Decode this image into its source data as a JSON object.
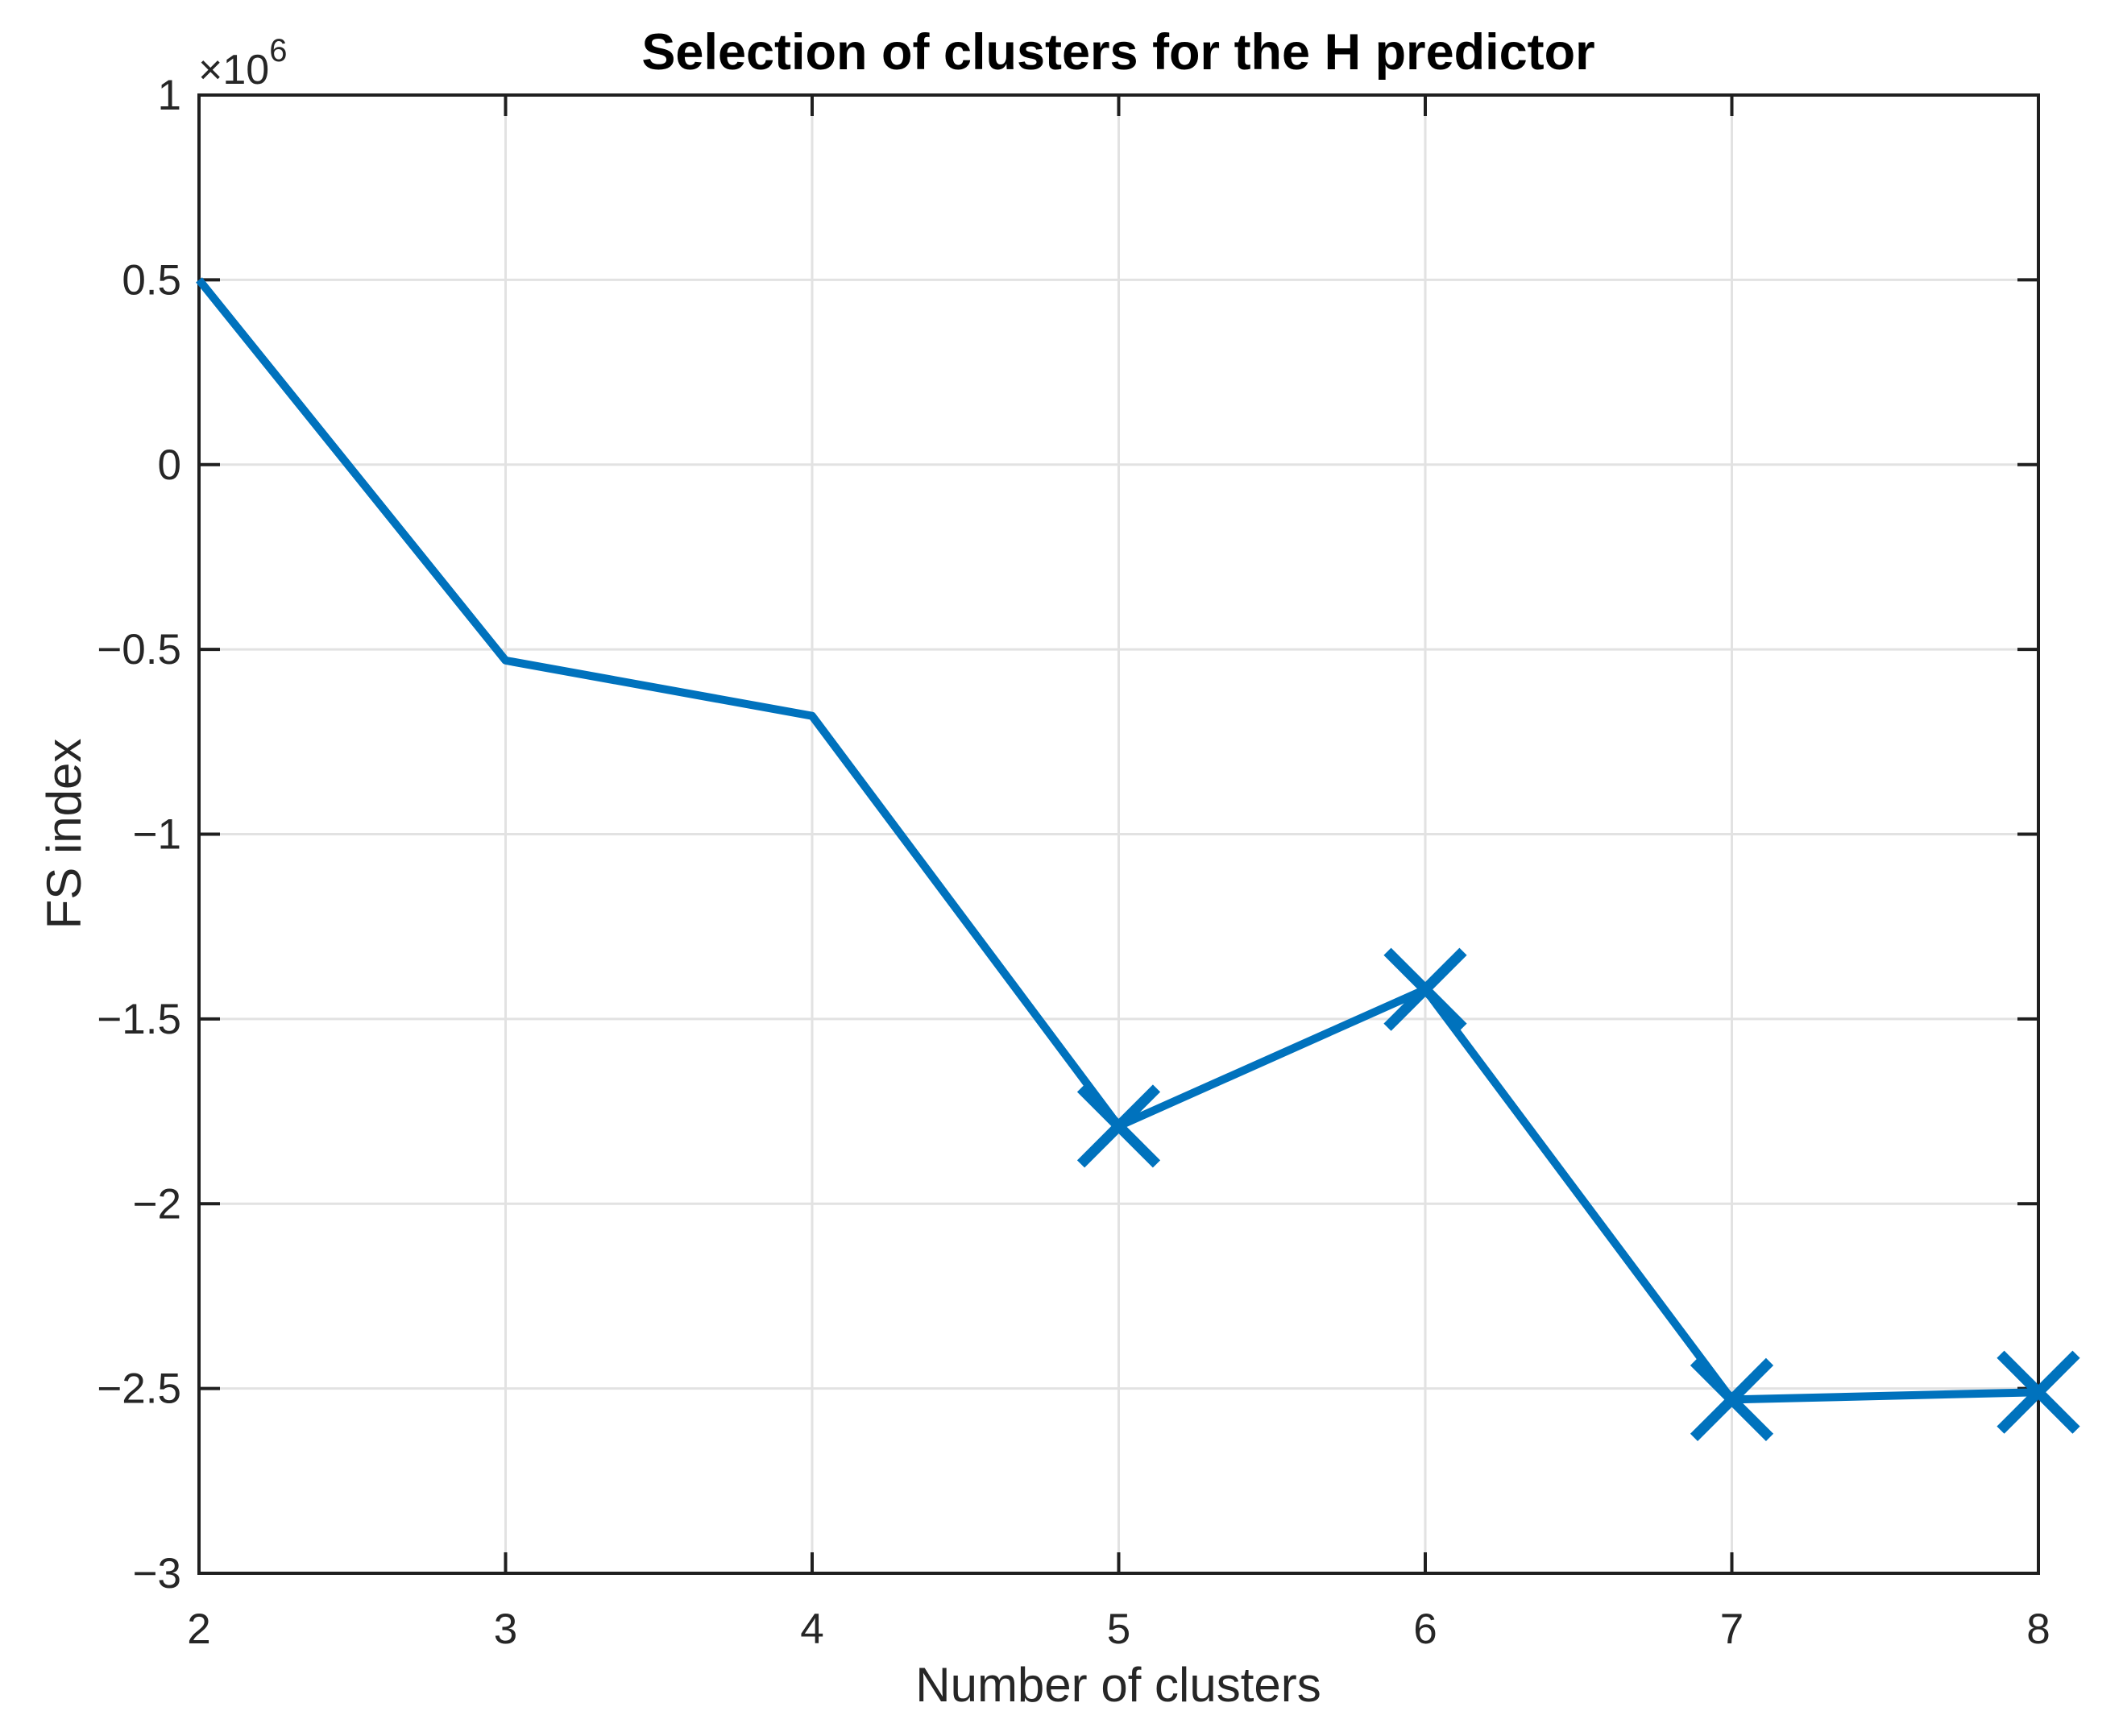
{
  "figure": {
    "background": "#ffffff"
  },
  "chart_data": {
    "type": "line",
    "title": "Selection of clusters for the H predictor",
    "xlabel": "Number of clusters",
    "ylabel": "FS index",
    "y_multiplier": {
      "base": "×10",
      "exponent": "6"
    },
    "x": [
      2,
      3,
      4,
      5,
      6,
      7,
      8
    ],
    "series": [
      {
        "name": "FS index",
        "values_x1e6": [
          0.5,
          -0.53,
          -0.68,
          -1.79,
          -1.42,
          -2.53,
          -2.51
        ],
        "color": "#0072BD",
        "marker": "x",
        "marker_points_x": [
          5,
          6,
          7,
          8
        ]
      }
    ],
    "xlim": [
      2,
      8
    ],
    "ylim_x1e6": [
      -3,
      1
    ],
    "xticks": [
      2,
      3,
      4,
      5,
      6,
      7,
      8
    ],
    "xticklabels": [
      "2",
      "3",
      "4",
      "5",
      "6",
      "7",
      "8"
    ],
    "yticks_x1e6": [
      1,
      0.5,
      0,
      -0.5,
      -1,
      -1.5,
      -2,
      -2.5,
      -3
    ],
    "yticklabels": [
      "1",
      "0.5",
      "0",
      "−0.5",
      "−1",
      "−1.5",
      "−2",
      "−2.5",
      "−3"
    ],
    "grid": true,
    "legend": null,
    "colors": {
      "line": "#0072BD",
      "grid": "#e2e2e2",
      "axis": "#1f1f1f",
      "tick_label": "#262626",
      "title": "#000000"
    }
  }
}
